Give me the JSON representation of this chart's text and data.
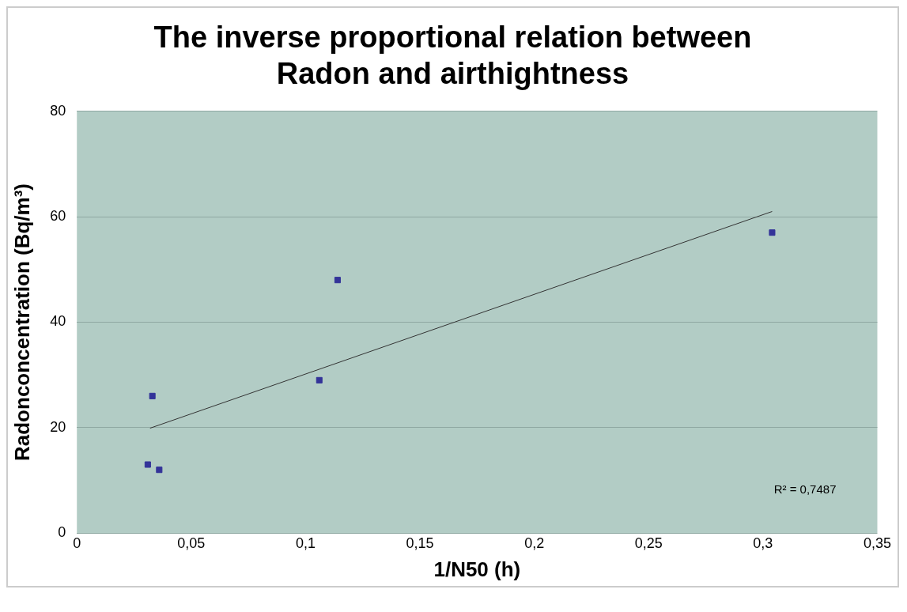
{
  "chart_data": {
    "type": "scatter",
    "title": "The inverse proportional relation between Radon and airthightness",
    "xlabel": "1/N50 (h)",
    "ylabel": "Radonconcentration (Bq/m³)",
    "series": [
      {
        "type": "scatter",
        "marker": "square",
        "color": "#333399",
        "x": [
          0.031,
          0.033,
          0.036,
          0.106,
          0.114,
          0.304
        ],
        "values": [
          13,
          26,
          12,
          29,
          48,
          57
        ]
      },
      {
        "type": "line",
        "marker": "none",
        "color": "#333333",
        "x": [
          0.032,
          0.304
        ],
        "values": [
          19.9,
          61
        ]
      }
    ],
    "xlim": [
      0,
      0.35
    ],
    "xticks": [
      0,
      {
        "value": 0.05,
        "label": "0,05"
      },
      {
        "value": 0.1,
        "label": "0,1"
      },
      {
        "value": 0.15,
        "label": "0,15"
      },
      {
        "value": 0.2,
        "label": "0,2"
      },
      {
        "value": 0.25,
        "label": "0,25"
      },
      {
        "value": 0.3,
        "label": "0,3"
      },
      {
        "value": 0.35,
        "label": "0,35"
      }
    ],
    "ylim": [
      0,
      80
    ],
    "yticks": [
      0,
      20,
      40,
      60,
      80
    ],
    "grid": "y",
    "legend": false,
    "line_style": "solid",
    "annotations": [
      "R² = 0,7487"
    ]
  }
}
